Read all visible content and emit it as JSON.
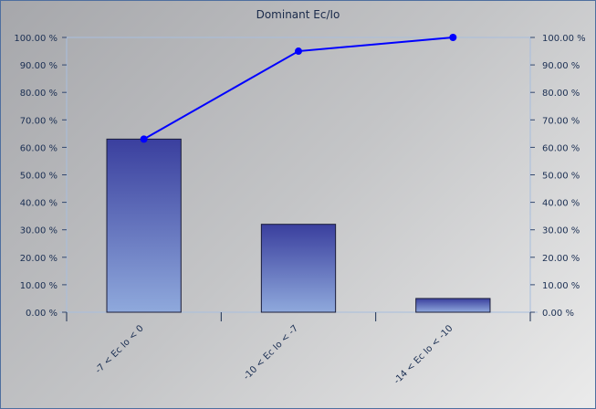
{
  "chart_data": {
    "type": "bar",
    "title": "Dominant Ec/Io",
    "categories": [
      "-7 < Ec Io < 0",
      "-10 < Ec Io < -7",
      "-14 < Ec Io < -10"
    ],
    "series": [
      {
        "type": "bar",
        "values": [
          63,
          32,
          5
        ]
      },
      {
        "type": "line",
        "values": [
          63,
          95,
          100
        ]
      }
    ],
    "ylim": [
      0,
      100
    ],
    "y2lim": [
      0,
      100
    ],
    "yticks": [
      "0.00 %",
      "10.00 %",
      "20.00 %",
      "30.00 %",
      "40.00 %",
      "50.00 %",
      "60.00 %",
      "70.00 %",
      "80.00 %",
      "90.00 %",
      "100.00 %"
    ],
    "grid": false,
    "colors": {
      "bar_top": "#3a3f9e",
      "bar_bottom": "#8fa9dc",
      "line": "#0000ff",
      "axis": "#a8bede",
      "axis_text": "#1a2e52"
    }
  }
}
